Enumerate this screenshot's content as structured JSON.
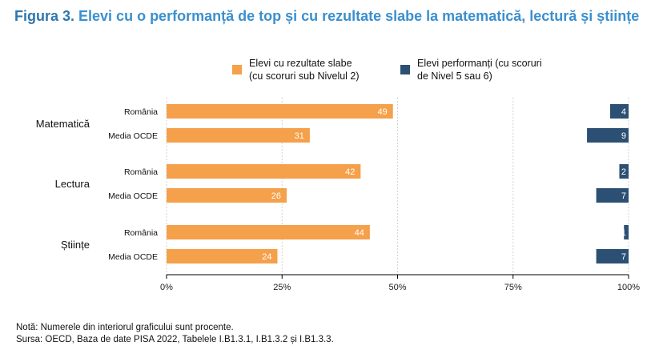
{
  "figure": {
    "label": "Figura 3.",
    "title": "Elevi cu o performanță de top și cu rezultate slabe la matematică, lectură și științe"
  },
  "legend": [
    {
      "label": "Elevi cu rezultate slabe\n(cu scoruri sub Nivelul 2)",
      "color": "#f5a04a"
    },
    {
      "label": "Elevi performanți (cu scoruri\nde Nivel 5 sau 6)",
      "color": "#2c5073"
    }
  ],
  "notes": {
    "note": "Notă: Numerele din interiorul graficului sunt procente.",
    "source": "Sursa: OECD, Baza de date PISA 2022, Tabelele I.B1.3.1, I.B1.3.2 și I.B1.3.3."
  },
  "chart_data": {
    "type": "bar",
    "orientation": "horizontal",
    "xlim": [
      0,
      100
    ],
    "x_ticks": [
      "0%",
      "25%",
      "50%",
      "75%",
      "100%"
    ],
    "grid": true,
    "legend_position": "top",
    "groups": [
      {
        "name": "Matematică",
        "rows": [
          {
            "label": "România",
            "low": 49,
            "top": 4
          },
          {
            "label": "Media OCDE",
            "low": 31,
            "top": 9
          }
        ]
      },
      {
        "name": "Lectura",
        "rows": [
          {
            "label": "România",
            "low": 42,
            "top": 2
          },
          {
            "label": "Media OCDE",
            "low": 26,
            "top": 7
          }
        ]
      },
      {
        "name": "Științe",
        "rows": [
          {
            "label": "România",
            "low": 44,
            "top": 1
          },
          {
            "label": "Media OCDE",
            "low": 24,
            "top": 7
          }
        ]
      }
    ],
    "series": [
      {
        "key": "low",
        "color": "#f5a04a",
        "anchor": "left"
      },
      {
        "key": "top",
        "color": "#2c5073",
        "anchor": "right"
      }
    ]
  }
}
